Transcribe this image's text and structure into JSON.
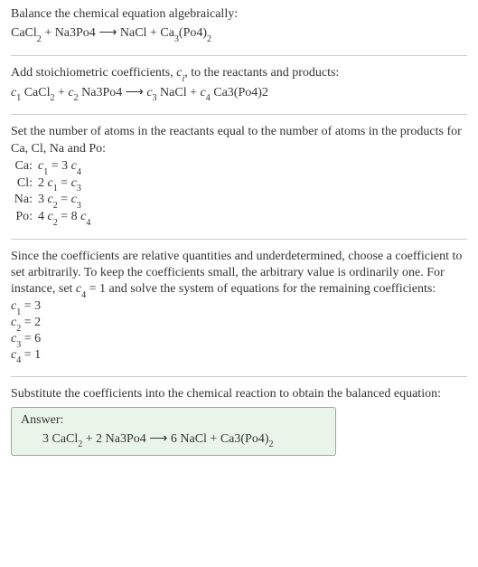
{
  "title": "Balance the chemical equation algebraically:",
  "unbalanced": {
    "lhs": [
      {
        "coef": "",
        "base": "CaCl",
        "sub": "2"
      },
      {
        "coef": "",
        "base": "Na3Po4",
        "sub": ""
      }
    ],
    "rhs": [
      {
        "coef": "",
        "base": "NaCl",
        "sub": ""
      },
      {
        "coef": "",
        "base": "Ca",
        "sub": "3",
        "tail": "(Po4)",
        "tailsub": "2"
      }
    ],
    "arrow": "⟶"
  },
  "stoich_intro_1": "Add stoichiometric coefficients, ",
  "stoich_intro_ci": "c",
  "stoich_intro_ci_sub": "i",
  "stoich_intro_2": ", to the reactants and products:",
  "stoich_eq": {
    "c": [
      "1",
      "2",
      "3",
      "4"
    ],
    "terms": [
      "CaCl",
      "Na3Po4",
      "NaCl",
      "Ca3(Po4)2"
    ],
    "sub1": "2",
    "arrow": "⟶"
  },
  "atoms_intro": "Set the number of atoms in the reactants equal to the number of atoms in the products for Ca, Cl, Na and Po:",
  "atom_rows": [
    {
      "el": "Ca:",
      "eq_l1": "c",
      "eq_l1s": "1",
      "eq_mid": " = 3 ",
      "eq_r1": "c",
      "eq_r1s": "4"
    },
    {
      "el": "Cl:",
      "eq_l0": "2 ",
      "eq_l1": "c",
      "eq_l1s": "1",
      "eq_mid": " = ",
      "eq_r1": "c",
      "eq_r1s": "3"
    },
    {
      "el": "Na:",
      "eq_l0": "3 ",
      "eq_l1": "c",
      "eq_l1s": "2",
      "eq_mid": " = ",
      "eq_r1": "c",
      "eq_r1s": "3"
    },
    {
      "el": "Po:",
      "eq_l0": "4 ",
      "eq_l1": "c",
      "eq_l1s": "2",
      "eq_mid": " = 8 ",
      "eq_r1": "c",
      "eq_r1s": "4"
    }
  ],
  "choose_text_1": "Since the coefficients are relative quantities and underdetermined, choose a coefficient to set arbitrarily. To keep the coefficients small, the arbitrary value is ordinarily one. For instance, set ",
  "choose_c": "c",
  "choose_c_sub": "4",
  "choose_text_2": " = 1 and solve the system of equations for the remaining coefficients:",
  "solutions": [
    {
      "c": "c",
      "s": "1",
      "v": " = 3"
    },
    {
      "c": "c",
      "s": "2",
      "v": " = 2"
    },
    {
      "c": "c",
      "s": "3",
      "v": " = 6"
    },
    {
      "c": "c",
      "s": "4",
      "v": " = 1"
    }
  ],
  "subst_text": "Substitute the coefficients into the chemical reaction to obtain the balanced equation:",
  "answer_label": "Answer:",
  "answer_eq_parts": {
    "p1": "3 CaCl",
    "s1": "2",
    "p2": " + 2 Na3Po4 ",
    "arrow": "⟶",
    "p3": " 6 NaCl + Ca3(Po4)",
    "s3": "2"
  },
  "colors": {
    "text": "#333333",
    "hr": "#cccccc",
    "answer_border": "#8ab38a",
    "answer_bg": "#eaf5ea"
  }
}
